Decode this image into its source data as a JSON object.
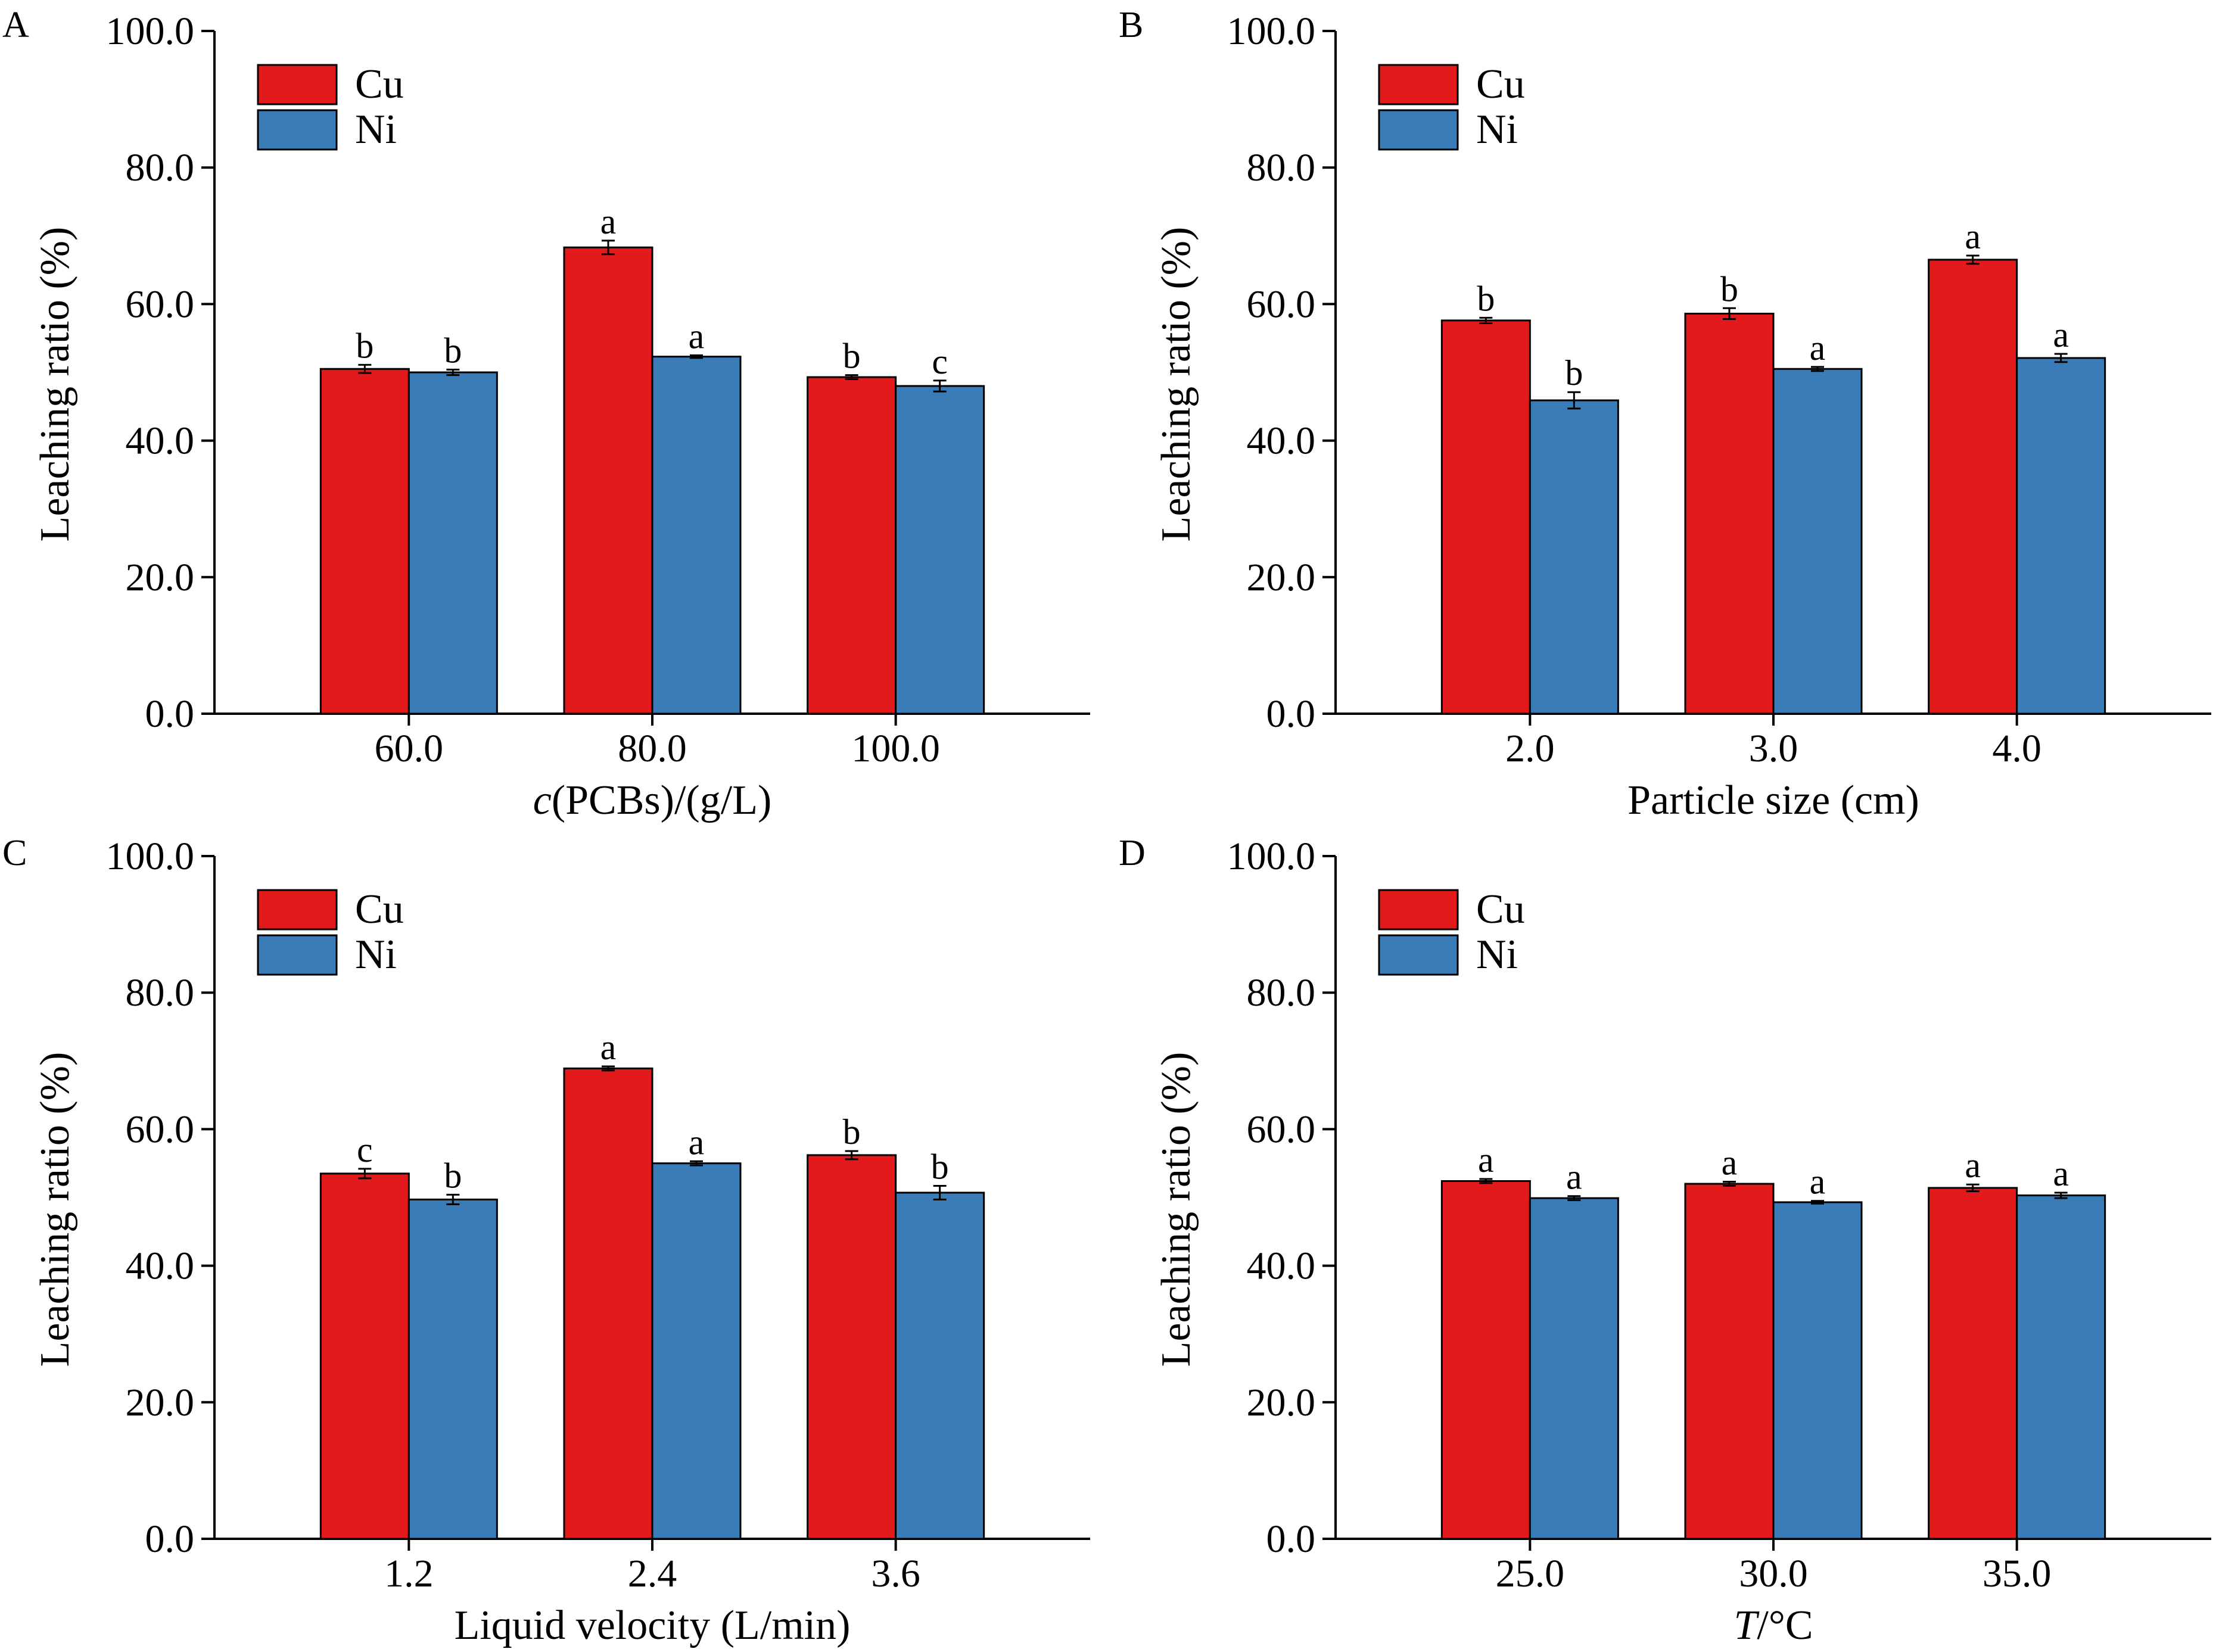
{
  "colors": {
    "cu": "#e31a1c",
    "ni": "#3a7cb8",
    "axis": "#000000"
  },
  "legend": {
    "cu_label": "Cu",
    "ni_label": "Ni",
    "placement": "top-left"
  },
  "chart_data": [
    {
      "panel": "A",
      "type": "bar",
      "xlabel_italic": "c",
      "xlabel_rest": "(PCBs)/(g/L)",
      "ylabel": "Leaching ratio (%)",
      "ylim": [
        0,
        100
      ],
      "yticks": [
        "0.0",
        "20.0",
        "40.0",
        "60.0",
        "80.0",
        "100.0"
      ],
      "categories": [
        "60.0",
        "80.0",
        "100.0"
      ],
      "series": [
        {
          "name": "Cu",
          "values": [
            50.5,
            68.3,
            49.3
          ],
          "errors": [
            0.6,
            1.0,
            0.3
          ],
          "labels": [
            "b",
            "a",
            "b"
          ]
        },
        {
          "name": "Ni",
          "values": [
            50.0,
            52.3,
            48.0
          ],
          "errors": [
            0.4,
            0.2,
            0.8
          ],
          "labels": [
            "b",
            "a",
            "c"
          ]
        }
      ]
    },
    {
      "panel": "B",
      "type": "bar",
      "xlabel_italic": "",
      "xlabel_rest": "Particle size (cm)",
      "ylabel": "Leaching ratio (%)",
      "ylim": [
        0,
        100
      ],
      "yticks": [
        "0.0",
        "20.0",
        "40.0",
        "60.0",
        "80.0",
        "100.0"
      ],
      "categories": [
        "2.0",
        "3.0",
        "4.0"
      ],
      "series": [
        {
          "name": "Cu",
          "values": [
            57.6,
            58.6,
            66.5
          ],
          "errors": [
            0.4,
            0.8,
            0.6
          ],
          "labels": [
            "b",
            "b",
            "a"
          ]
        },
        {
          "name": "Ni",
          "values": [
            45.9,
            50.5,
            52.1
          ],
          "errors": [
            1.2,
            0.3,
            0.6
          ],
          "labels": [
            "b",
            "a",
            "a"
          ]
        }
      ]
    },
    {
      "panel": "C",
      "type": "bar",
      "xlabel_italic": "",
      "xlabel_rest": "Liquid velocity (L/min)",
      "ylabel": "Leaching ratio (%)",
      "ylim": [
        0,
        100
      ],
      "yticks": [
        "0.0",
        "20.0",
        "40.0",
        "60.0",
        "80.0",
        "100.0"
      ],
      "categories": [
        "1.2",
        "2.4",
        "3.6"
      ],
      "series": [
        {
          "name": "Cu",
          "values": [
            53.5,
            68.9,
            56.2
          ],
          "errors": [
            0.7,
            0.3,
            0.6
          ],
          "labels": [
            "c",
            "a",
            "b"
          ]
        },
        {
          "name": "Ni",
          "values": [
            49.7,
            55.0,
            50.7
          ],
          "errors": [
            0.7,
            0.3,
            1.0
          ],
          "labels": [
            "b",
            "a",
            "b"
          ]
        }
      ]
    },
    {
      "panel": "D",
      "type": "bar",
      "xlabel_italic": "T",
      "xlabel_rest": "/°C",
      "ylabel": "Leaching ratio (%)",
      "ylim": [
        0,
        100
      ],
      "yticks": [
        "0.0",
        "20.0",
        "40.0",
        "60.0",
        "80.0",
        "100.0"
      ],
      "categories": [
        "25.0",
        "30.0",
        "35.0"
      ],
      "series": [
        {
          "name": "Cu",
          "values": [
            52.4,
            52.0,
            51.4
          ],
          "errors": [
            0.3,
            0.3,
            0.5
          ],
          "labels": [
            "a",
            "a",
            "a"
          ]
        },
        {
          "name": "Ni",
          "values": [
            49.9,
            49.3,
            50.3
          ],
          "errors": [
            0.3,
            0.2,
            0.4
          ],
          "labels": [
            "a",
            "a",
            "a"
          ]
        }
      ]
    }
  ]
}
